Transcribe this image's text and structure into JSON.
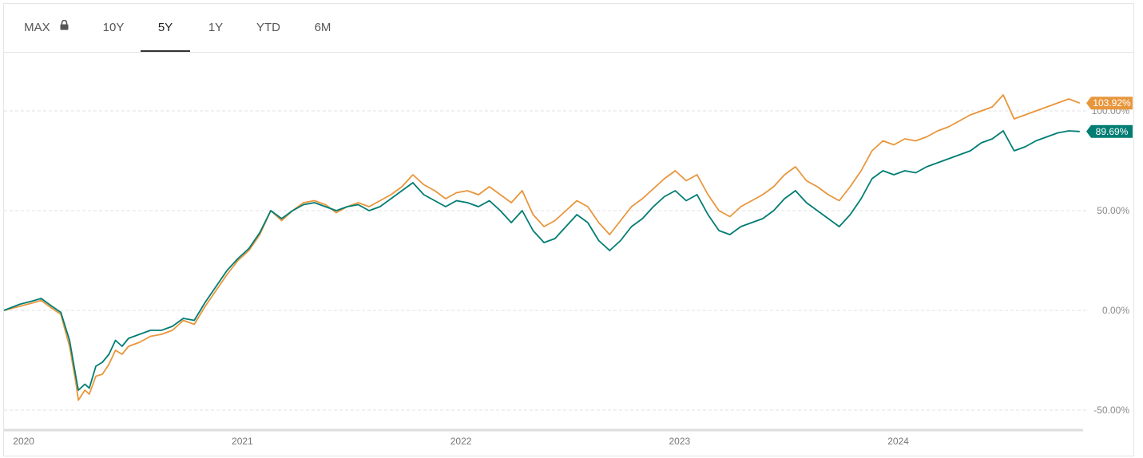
{
  "tabs": [
    {
      "label": "MAX",
      "locked": true
    },
    {
      "label": "10Y"
    },
    {
      "label": "5Y",
      "active": true
    },
    {
      "label": "1Y"
    },
    {
      "label": "YTD"
    },
    {
      "label": "6M"
    }
  ],
  "colors": {
    "series_a": "#e8963c",
    "series_b": "#007d73",
    "grid": "#e2e2e2"
  },
  "chart_data": {
    "type": "line",
    "xlabel": "",
    "ylabel": "",
    "x_ticks": [
      "2020",
      "2021",
      "2022",
      "2023",
      "2024"
    ],
    "y_ticks": [
      "-50.00%",
      "0.00%",
      "50.00%",
      "100.00%"
    ],
    "ylim": [
      -60,
      120
    ],
    "x_range": [
      2019.93,
      2024.88
    ],
    "grid": "horizontal dashed",
    "series": [
      {
        "color": "#e8963c",
        "end_label": "103.92%",
        "points": [
          [
            2019.93,
            0
          ],
          [
            2020.0,
            2
          ],
          [
            2020.07,
            4
          ],
          [
            2020.1,
            5
          ],
          [
            2020.15,
            1
          ],
          [
            2020.19,
            -2
          ],
          [
            2020.21,
            -10
          ],
          [
            2020.23,
            -18
          ],
          [
            2020.26,
            -37
          ],
          [
            2020.27,
            -45
          ],
          [
            2020.3,
            -40
          ],
          [
            2020.32,
            -42
          ],
          [
            2020.35,
            -33
          ],
          [
            2020.38,
            -32
          ],
          [
            2020.41,
            -27
          ],
          [
            2020.44,
            -20
          ],
          [
            2020.47,
            -22
          ],
          [
            2020.5,
            -18
          ],
          [
            2020.55,
            -16
          ],
          [
            2020.6,
            -13
          ],
          [
            2020.65,
            -12
          ],
          [
            2020.7,
            -10
          ],
          [
            2020.75,
            -5
          ],
          [
            2020.8,
            -7
          ],
          [
            2020.85,
            2
          ],
          [
            2020.9,
            10
          ],
          [
            2020.95,
            18
          ],
          [
            2021.0,
            25
          ],
          [
            2021.05,
            30
          ],
          [
            2021.1,
            38
          ],
          [
            2021.15,
            50
          ],
          [
            2021.2,
            45
          ],
          [
            2021.25,
            50
          ],
          [
            2021.3,
            54
          ],
          [
            2021.35,
            55
          ],
          [
            2021.4,
            53
          ],
          [
            2021.45,
            49
          ],
          [
            2021.5,
            52
          ],
          [
            2021.55,
            54
          ],
          [
            2021.6,
            52
          ],
          [
            2021.65,
            55
          ],
          [
            2021.7,
            58
          ],
          [
            2021.75,
            62
          ],
          [
            2021.8,
            68
          ],
          [
            2021.85,
            63
          ],
          [
            2021.9,
            60
          ],
          [
            2021.95,
            56
          ],
          [
            2022.0,
            59
          ],
          [
            2022.05,
            60
          ],
          [
            2022.1,
            58
          ],
          [
            2022.15,
            62
          ],
          [
            2022.2,
            58
          ],
          [
            2022.25,
            54
          ],
          [
            2022.3,
            60
          ],
          [
            2022.35,
            48
          ],
          [
            2022.4,
            42
          ],
          [
            2022.45,
            45
          ],
          [
            2022.5,
            50
          ],
          [
            2022.55,
            55
          ],
          [
            2022.6,
            52
          ],
          [
            2022.65,
            44
          ],
          [
            2022.7,
            38
          ],
          [
            2022.75,
            45
          ],
          [
            2022.8,
            52
          ],
          [
            2022.85,
            56
          ],
          [
            2022.9,
            61
          ],
          [
            2022.95,
            66
          ],
          [
            2023.0,
            70
          ],
          [
            2023.05,
            65
          ],
          [
            2023.1,
            68
          ],
          [
            2023.15,
            58
          ],
          [
            2023.2,
            50
          ],
          [
            2023.25,
            47
          ],
          [
            2023.3,
            52
          ],
          [
            2023.35,
            55
          ],
          [
            2023.4,
            58
          ],
          [
            2023.45,
            62
          ],
          [
            2023.5,
            68
          ],
          [
            2023.55,
            72
          ],
          [
            2023.6,
            65
          ],
          [
            2023.65,
            62
          ],
          [
            2023.7,
            58
          ],
          [
            2023.75,
            55
          ],
          [
            2023.8,
            62
          ],
          [
            2023.85,
            70
          ],
          [
            2023.9,
            80
          ],
          [
            2023.95,
            85
          ],
          [
            2024.0,
            83
          ],
          [
            2024.05,
            86
          ],
          [
            2024.1,
            85
          ],
          [
            2024.15,
            87
          ],
          [
            2024.2,
            90
          ],
          [
            2024.25,
            92
          ],
          [
            2024.3,
            95
          ],
          [
            2024.35,
            98
          ],
          [
            2024.4,
            100
          ],
          [
            2024.45,
            102
          ],
          [
            2024.5,
            108
          ],
          [
            2024.55,
            96
          ],
          [
            2024.6,
            98
          ],
          [
            2024.65,
            100
          ],
          [
            2024.7,
            102
          ],
          [
            2024.75,
            104
          ],
          [
            2024.8,
            106
          ],
          [
            2024.85,
            103.92
          ]
        ]
      },
      {
        "color": "#007d73",
        "end_label": "89.69%",
        "points": [
          [
            2019.93,
            0
          ],
          [
            2020.0,
            3
          ],
          [
            2020.07,
            5
          ],
          [
            2020.1,
            6
          ],
          [
            2020.15,
            2
          ],
          [
            2020.19,
            -1
          ],
          [
            2020.21,
            -8
          ],
          [
            2020.23,
            -15
          ],
          [
            2020.26,
            -34
          ],
          [
            2020.27,
            -40
          ],
          [
            2020.3,
            -37
          ],
          [
            2020.32,
            -39
          ],
          [
            2020.35,
            -28
          ],
          [
            2020.38,
            -26
          ],
          [
            2020.41,
            -22
          ],
          [
            2020.44,
            -15
          ],
          [
            2020.47,
            -18
          ],
          [
            2020.5,
            -14
          ],
          [
            2020.55,
            -12
          ],
          [
            2020.6,
            -10
          ],
          [
            2020.65,
            -10
          ],
          [
            2020.7,
            -8
          ],
          [
            2020.75,
            -4
          ],
          [
            2020.8,
            -5
          ],
          [
            2020.85,
            4
          ],
          [
            2020.9,
            12
          ],
          [
            2020.95,
            20
          ],
          [
            2021.0,
            26
          ],
          [
            2021.05,
            31
          ],
          [
            2021.1,
            39
          ],
          [
            2021.15,
            50
          ],
          [
            2021.2,
            46
          ],
          [
            2021.25,
            50
          ],
          [
            2021.3,
            53
          ],
          [
            2021.35,
            54
          ],
          [
            2021.4,
            52
          ],
          [
            2021.45,
            50
          ],
          [
            2021.5,
            52
          ],
          [
            2021.55,
            53
          ],
          [
            2021.6,
            50
          ],
          [
            2021.65,
            52
          ],
          [
            2021.7,
            56
          ],
          [
            2021.75,
            60
          ],
          [
            2021.8,
            64
          ],
          [
            2021.85,
            58
          ],
          [
            2021.9,
            55
          ],
          [
            2021.95,
            52
          ],
          [
            2022.0,
            55
          ],
          [
            2022.05,
            54
          ],
          [
            2022.1,
            52
          ],
          [
            2022.15,
            55
          ],
          [
            2022.2,
            50
          ],
          [
            2022.25,
            44
          ],
          [
            2022.3,
            50
          ],
          [
            2022.35,
            40
          ],
          [
            2022.4,
            34
          ],
          [
            2022.45,
            36
          ],
          [
            2022.5,
            42
          ],
          [
            2022.55,
            48
          ],
          [
            2022.6,
            44
          ],
          [
            2022.65,
            35
          ],
          [
            2022.7,
            30
          ],
          [
            2022.75,
            35
          ],
          [
            2022.8,
            42
          ],
          [
            2022.85,
            46
          ],
          [
            2022.9,
            52
          ],
          [
            2022.95,
            57
          ],
          [
            2023.0,
            60
          ],
          [
            2023.05,
            55
          ],
          [
            2023.1,
            58
          ],
          [
            2023.15,
            48
          ],
          [
            2023.2,
            40
          ],
          [
            2023.25,
            38
          ],
          [
            2023.3,
            42
          ],
          [
            2023.35,
            44
          ],
          [
            2023.4,
            46
          ],
          [
            2023.45,
            50
          ],
          [
            2023.5,
            56
          ],
          [
            2023.55,
            60
          ],
          [
            2023.6,
            54
          ],
          [
            2023.65,
            50
          ],
          [
            2023.7,
            46
          ],
          [
            2023.75,
            42
          ],
          [
            2023.8,
            48
          ],
          [
            2023.85,
            56
          ],
          [
            2023.9,
            66
          ],
          [
            2023.95,
            70
          ],
          [
            2024.0,
            68
          ],
          [
            2024.05,
            70
          ],
          [
            2024.1,
            69
          ],
          [
            2024.15,
            72
          ],
          [
            2024.2,
            74
          ],
          [
            2024.25,
            76
          ],
          [
            2024.3,
            78
          ],
          [
            2024.35,
            80
          ],
          [
            2024.4,
            84
          ],
          [
            2024.45,
            86
          ],
          [
            2024.5,
            90
          ],
          [
            2024.55,
            80
          ],
          [
            2024.6,
            82
          ],
          [
            2024.65,
            85
          ],
          [
            2024.7,
            87
          ],
          [
            2024.75,
            89
          ],
          [
            2024.8,
            90
          ],
          [
            2024.85,
            89.69
          ]
        ]
      }
    ]
  }
}
